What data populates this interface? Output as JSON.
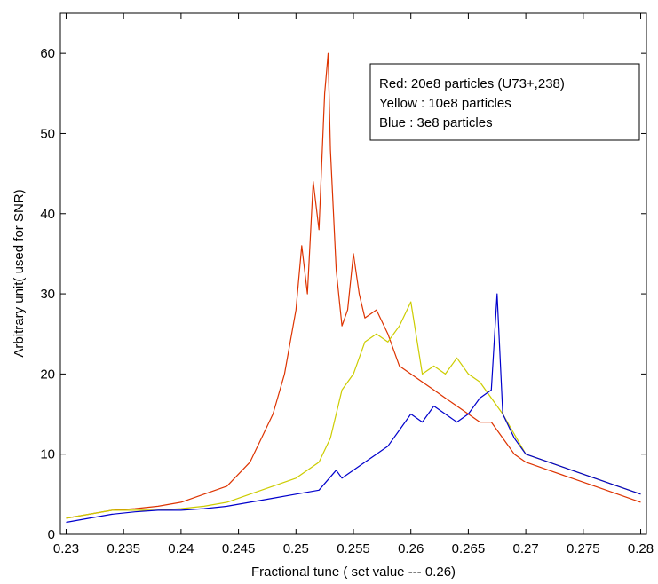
{
  "chart_data": {
    "type": "line",
    "title": "",
    "xlabel": "Fractional tune ( set value  --- 0.26)",
    "ylabel": "Arbitrary unit( used for SNR)",
    "xlim": [
      0.2295,
      0.2805
    ],
    "ylim": [
      0,
      65
    ],
    "xticks": [
      0.23,
      0.235,
      0.24,
      0.245,
      0.25,
      0.255,
      0.26,
      0.265,
      0.27,
      0.275,
      0.28
    ],
    "xtick_labels": [
      "0.23",
      "0.235",
      "0.24",
      "0.245",
      "0.25",
      "0.255",
      "0.26",
      "0.265",
      "0.27",
      "0.275",
      "0.28"
    ],
    "yticks": [
      0,
      10,
      20,
      30,
      40,
      50,
      60
    ],
    "ytick_labels": [
      "0",
      "10",
      "20",
      "30",
      "40",
      "50",
      "60"
    ],
    "grid": false,
    "legend": {
      "placement": "top-right",
      "entries": [
        "Red: 20e8 particles (U73+,238)",
        "Yellow : 10e8 particles",
        "Blue : 3e8 particles"
      ]
    },
    "series": [
      {
        "color": "#dd3300",
        "x": [
          0.23,
          0.232,
          0.234,
          0.236,
          0.238,
          0.24,
          0.242,
          0.244,
          0.246,
          0.247,
          0.248,
          0.249,
          0.25,
          0.2505,
          0.251,
          0.2515,
          0.252,
          0.2525,
          0.2528,
          0.253,
          0.2535,
          0.254,
          0.2545,
          0.255,
          0.2555,
          0.256,
          0.257,
          0.258,
          0.259,
          0.26,
          0.261,
          0.262,
          0.263,
          0.264,
          0.265,
          0.266,
          0.267,
          0.268,
          0.269,
          0.27,
          0.272,
          0.274,
          0.276,
          0.278,
          0.28
        ],
        "values": [
          2,
          2.5,
          3,
          3.2,
          3.5,
          4,
          5,
          6,
          9,
          12,
          15,
          20,
          28,
          36,
          30,
          44,
          38,
          55,
          60,
          48,
          33,
          26,
          28,
          35,
          30,
          27,
          28,
          25,
          21,
          20,
          19,
          18,
          17,
          16,
          15,
          14,
          14,
          12,
          10,
          9,
          8,
          7,
          6,
          5,
          4
        ]
      },
      {
        "color": "#cccc00",
        "x": [
          0.23,
          0.232,
          0.234,
          0.236,
          0.238,
          0.24,
          0.242,
          0.244,
          0.246,
          0.248,
          0.25,
          0.252,
          0.253,
          0.254,
          0.255,
          0.256,
          0.257,
          0.258,
          0.259,
          0.26,
          0.261,
          0.262,
          0.263,
          0.264,
          0.265,
          0.266,
          0.267,
          0.268,
          0.27,
          0.272,
          0.274,
          0.276,
          0.278,
          0.28
        ],
        "values": [
          2,
          2.5,
          3,
          3,
          3,
          3.2,
          3.5,
          4,
          5,
          6,
          7,
          9,
          12,
          18,
          20,
          24,
          25,
          24,
          26,
          29,
          20,
          21,
          20,
          22,
          20,
          19,
          17,
          15,
          10,
          9,
          8,
          7,
          6,
          5
        ]
      },
      {
        "color": "#0000cc",
        "x": [
          0.23,
          0.232,
          0.234,
          0.236,
          0.238,
          0.24,
          0.242,
          0.244,
          0.246,
          0.248,
          0.25,
          0.252,
          0.2535,
          0.254,
          0.255,
          0.256,
          0.257,
          0.258,
          0.259,
          0.26,
          0.261,
          0.262,
          0.263,
          0.264,
          0.265,
          0.266,
          0.267,
          0.2675,
          0.268,
          0.269,
          0.27,
          0.272,
          0.274,
          0.276,
          0.278,
          0.28
        ],
        "values": [
          1.5,
          2,
          2.5,
          2.8,
          3,
          3,
          3.2,
          3.5,
          4,
          4.5,
          5,
          5.5,
          8,
          7,
          8,
          9,
          10,
          11,
          13,
          15,
          14,
          16,
          15,
          14,
          15,
          17,
          18,
          30,
          15,
          12,
          10,
          9,
          8,
          7,
          6,
          5
        ]
      }
    ]
  }
}
